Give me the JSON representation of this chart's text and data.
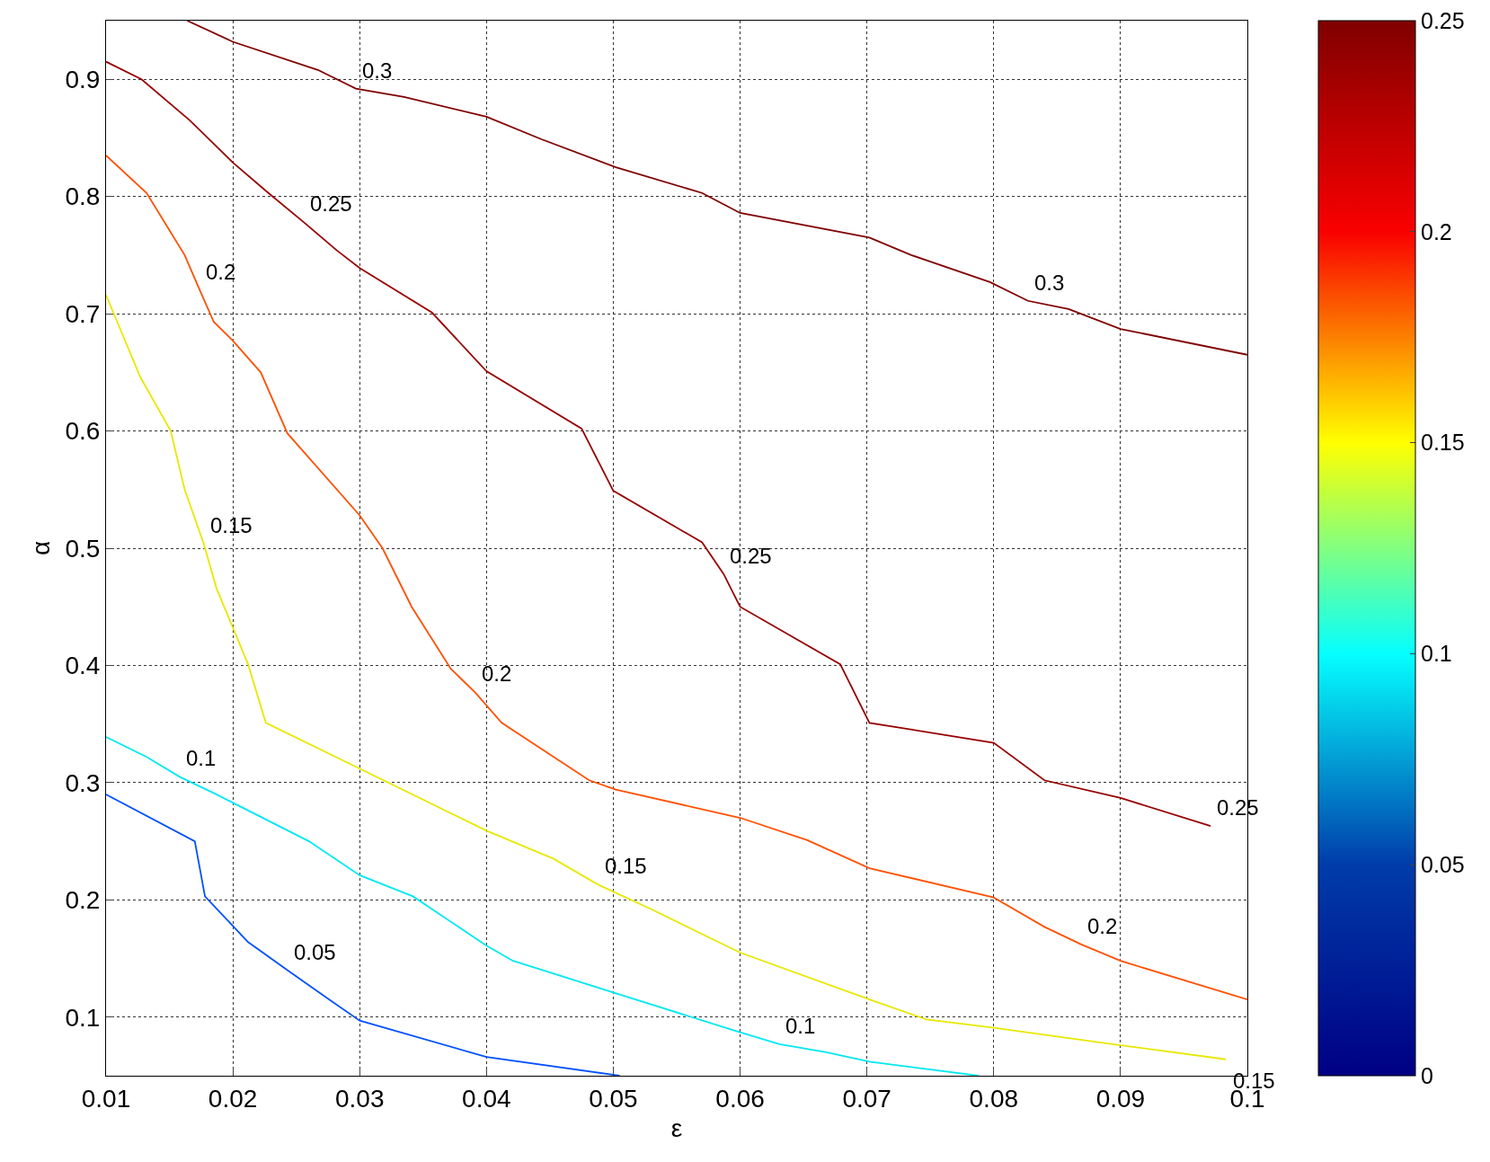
{
  "chart_data": {
    "type": "line",
    "xlabel": "ε",
    "ylabel": "α",
    "xlim": [
      0.01,
      0.1
    ],
    "xticks": [
      0.01,
      0.02,
      0.03,
      0.04,
      0.05,
      0.06,
      0.07,
      0.08,
      0.09,
      0.1
    ],
    "ylim": [
      0.05,
      0.95
    ],
    "yticks": [
      0.1,
      0.2,
      0.3,
      0.4,
      0.5,
      0.6,
      0.7,
      0.8,
      0.9
    ],
    "grid": true,
    "marker": "none",
    "line_style": "solid",
    "clim": [
      0,
      0.25
    ],
    "cticks": [
      0,
      0.05,
      0.1,
      0.15,
      0.2,
      0.25
    ],
    "series": [
      {
        "color": "#0050ff",
        "x": [
          0.01,
          0.017,
          0.0178,
          0.0212,
          0.0243,
          0.0276,
          0.03,
          0.04,
          0.0505
        ],
        "values": [
          0.29,
          0.25,
          0.203,
          0.164,
          0.14,
          0.115,
          0.097,
          0.066,
          0.05
        ]
      },
      {
        "color": "#00e8f0",
        "x": [
          0.01,
          0.0132,
          0.0158,
          0.0187,
          0.026,
          0.03,
          0.0342,
          0.04,
          0.0421,
          0.05,
          0.0597,
          0.0631,
          0.0668,
          0.0702,
          0.0788
        ],
        "values": [
          0.339,
          0.322,
          0.305,
          0.29,
          0.25,
          0.221,
          0.203,
          0.161,
          0.148,
          0.121,
          0.088,
          0.077,
          0.07,
          0.062,
          0.05
        ]
      },
      {
        "color": "#e8e800",
        "x": [
          0.01,
          0.0127,
          0.0151,
          0.0162,
          0.0177,
          0.0187,
          0.0212,
          0.0226,
          0.03,
          0.04,
          0.0453,
          0.0488,
          0.053,
          0.06,
          0.0702,
          0.0747,
          0.08,
          0.09,
          0.0983
        ],
        "values": [
          0.716,
          0.646,
          0.6,
          0.55,
          0.504,
          0.466,
          0.401,
          0.351,
          0.312,
          0.259,
          0.235,
          0.213,
          0.192,
          0.155,
          0.115,
          0.098,
          0.091,
          0.076,
          0.064
        ]
      },
      {
        "color": "#ff5000",
        "x": [
          0.01,
          0.0132,
          0.0162,
          0.0174,
          0.0185,
          0.02,
          0.0222,
          0.0243,
          0.03,
          0.0318,
          0.0341,
          0.0372,
          0.0391,
          0.0412,
          0.0481,
          0.0502,
          0.06,
          0.0653,
          0.0702,
          0.08,
          0.084,
          0.0869,
          0.09,
          0.1
        ],
        "values": [
          0.835,
          0.803,
          0.75,
          0.72,
          0.693,
          0.677,
          0.65,
          0.598,
          0.528,
          0.5,
          0.45,
          0.397,
          0.377,
          0.351,
          0.302,
          0.294,
          0.27,
          0.251,
          0.227,
          0.202,
          0.177,
          0.162,
          0.148,
          0.115
        ]
      },
      {
        "color": "#960000",
        "x": [
          0.01,
          0.0128,
          0.0166,
          0.02,
          0.0227,
          0.0256,
          0.0282,
          0.03,
          0.0357,
          0.04,
          0.0475,
          0.05,
          0.057,
          0.0587,
          0.06,
          0.0679,
          0.0702,
          0.08,
          0.084,
          0.09,
          0.0971
        ],
        "values": [
          0.915,
          0.9,
          0.865,
          0.829,
          0.804,
          0.778,
          0.754,
          0.739,
          0.701,
          0.651,
          0.602,
          0.549,
          0.505,
          0.478,
          0.45,
          0.401,
          0.351,
          0.334,
          0.302,
          0.287,
          0.263
        ]
      },
      {
        "color": "#800000",
        "x": [
          0.0164,
          0.02,
          0.0267,
          0.0297,
          0.0335,
          0.04,
          0.0443,
          0.0502,
          0.057,
          0.06,
          0.0702,
          0.0735,
          0.0797,
          0.0827,
          0.0859,
          0.09,
          0.1
        ],
        "values": [
          0.95,
          0.932,
          0.908,
          0.892,
          0.885,
          0.868,
          0.849,
          0.825,
          0.803,
          0.786,
          0.765,
          0.75,
          0.727,
          0.711,
          0.704,
          0.687,
          0.665
        ]
      }
    ],
    "annotations": [
      {
        "text": "0.05",
        "x": 0.0243,
        "y": 0.14
      },
      {
        "text": "0.1",
        "x": 0.0158,
        "y": 0.305
      },
      {
        "text": "0.1",
        "x": 0.0631,
        "y": 0.077
      },
      {
        "text": "0.15",
        "x": 0.0177,
        "y": 0.504
      },
      {
        "text": "0.15",
        "x": 0.0488,
        "y": 0.213
      },
      {
        "text": "0.15",
        "x": 0.0983,
        "y": 0.064
      },
      {
        "text": "0.2",
        "x": 0.0174,
        "y": 0.72
      },
      {
        "text": "0.2",
        "x": 0.0391,
        "y": 0.377
      },
      {
        "text": "0.2",
        "x": 0.0869,
        "y": 0.162
      },
      {
        "text": "0.25",
        "x": 0.0256,
        "y": 0.778
      },
      {
        "text": "0.25",
        "x": 0.0587,
        "y": 0.478
      },
      {
        "text": "0.25",
        "x": 0.0971,
        "y": 0.263
      },
      {
        "text": "0.3",
        "x": 0.0297,
        "y": 0.892
      },
      {
        "text": "0.3",
        "x": 0.0827,
        "y": 0.711
      }
    ]
  }
}
